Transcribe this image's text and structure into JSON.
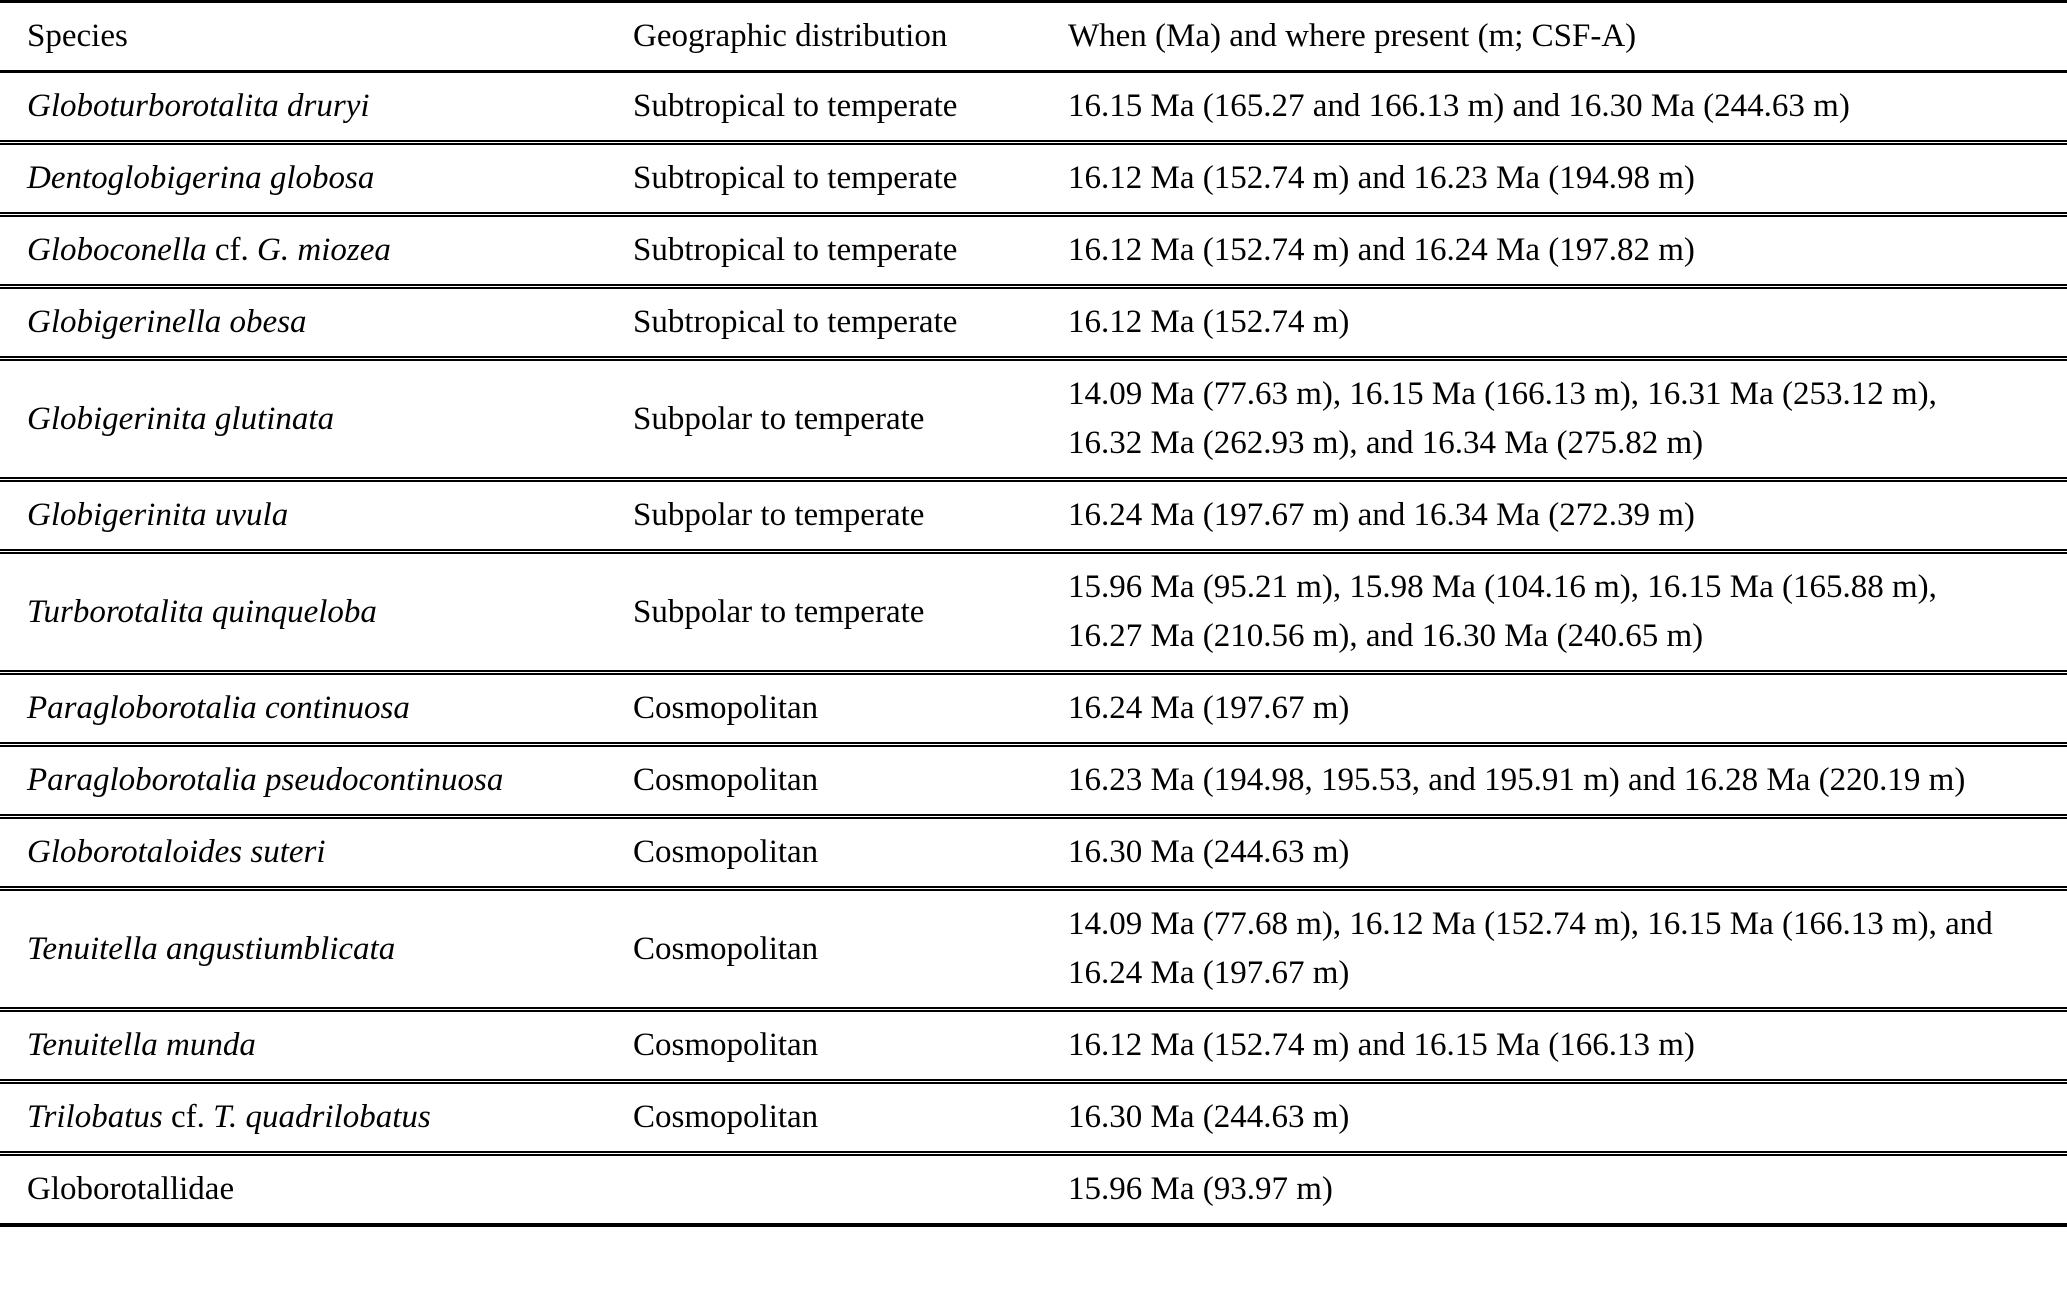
{
  "table": {
    "columns": [
      {
        "label": "Species"
      },
      {
        "label": "Geographic distribution"
      },
      {
        "label": "When (Ma) and where present (m; CSF-A)"
      }
    ],
    "rows": [
      {
        "species": {
          "i1": "Globoturborotalita druryi",
          "r": "",
          "i2": ""
        },
        "distribution": "Subtropical to temperate",
        "when": "16.15 Ma (165.27 and 166.13 m) and 16.30 Ma (244.63 m)"
      },
      {
        "species": {
          "i1": "Dentoglobigerina globosa",
          "r": "",
          "i2": ""
        },
        "distribution": "Subtropical to temperate",
        "when": "16.12 Ma (152.74 m) and 16.23 Ma (194.98 m)"
      },
      {
        "species": {
          "i1": "Globoconella",
          "r": " cf. ",
          "i2": "G. miozea"
        },
        "distribution": "Subtropical to temperate",
        "when": "16.12 Ma (152.74 m) and 16.24 Ma (197.82 m)"
      },
      {
        "species": {
          "i1": "Globigerinella obesa",
          "r": "",
          "i2": ""
        },
        "distribution": "Subtropical to temperate",
        "when": "16.12 Ma (152.74 m)"
      },
      {
        "species": {
          "i1": "Globigerinita glutinata",
          "r": "",
          "i2": ""
        },
        "distribution": "Subpolar to temperate",
        "when": "14.09 Ma (77.63 m), 16.15 Ma (166.13 m), 16.31 Ma (253.12 m), 16.32 Ma (262.93 m), and 16.34 Ma (275.82 m)"
      },
      {
        "species": {
          "i1": "Globigerinita uvula",
          "r": "",
          "i2": ""
        },
        "distribution": "Subpolar to temperate",
        "when": "16.24 Ma (197.67 m) and 16.34 Ma (272.39 m)"
      },
      {
        "species": {
          "i1": "Turborotalita quinqueloba",
          "r": "",
          "i2": ""
        },
        "distribution": "Subpolar to temperate",
        "when": "15.96 Ma (95.21 m), 15.98 Ma (104.16 m), 16.15 Ma (165.88 m), 16.27 Ma (210.56 m), and 16.30 Ma (240.65 m)"
      },
      {
        "species": {
          "i1": "Paragloborotalia continuosa",
          "r": "",
          "i2": ""
        },
        "distribution": "Cosmopolitan",
        "when": "16.24 Ma (197.67 m)"
      },
      {
        "species": {
          "i1": "Paragloborotalia pseudocontinuosa",
          "r": "",
          "i2": ""
        },
        "distribution": "Cosmopolitan",
        "when": "16.23 Ma (194.98, 195.53, and 195.91 m) and 16.28 Ma (220.19 m)"
      },
      {
        "species": {
          "i1": "Globorotaloides suteri",
          "r": "",
          "i2": ""
        },
        "distribution": "Cosmopolitan",
        "when": "16.30 Ma (244.63 m)"
      },
      {
        "species": {
          "i1": "Tenuitella angustiumblicata",
          "r": "",
          "i2": ""
        },
        "distribution": "Cosmopolitan",
        "when": "14.09 Ma (77.68 m), 16.12 Ma (152.74 m), 16.15 Ma (166.13 m), and 16.24 Ma (197.67 m)"
      },
      {
        "species": {
          "i1": "Tenuitella munda",
          "r": "",
          "i2": ""
        },
        "distribution": "Cosmopolitan",
        "when": "16.12 Ma (152.74 m) and 16.15 Ma (166.13 m)"
      },
      {
        "species": {
          "i1": "Trilobatus",
          "r": " cf. ",
          "i2": "T. quadrilobatus"
        },
        "distribution": "Cosmopolitan",
        "when": "16.30 Ma (244.63 m)"
      },
      {
        "species": {
          "i1": "",
          "r": "Globorotallidae",
          "i2": ""
        },
        "distribution": "",
        "when": "15.96 Ma (93.97 m)"
      }
    ]
  }
}
